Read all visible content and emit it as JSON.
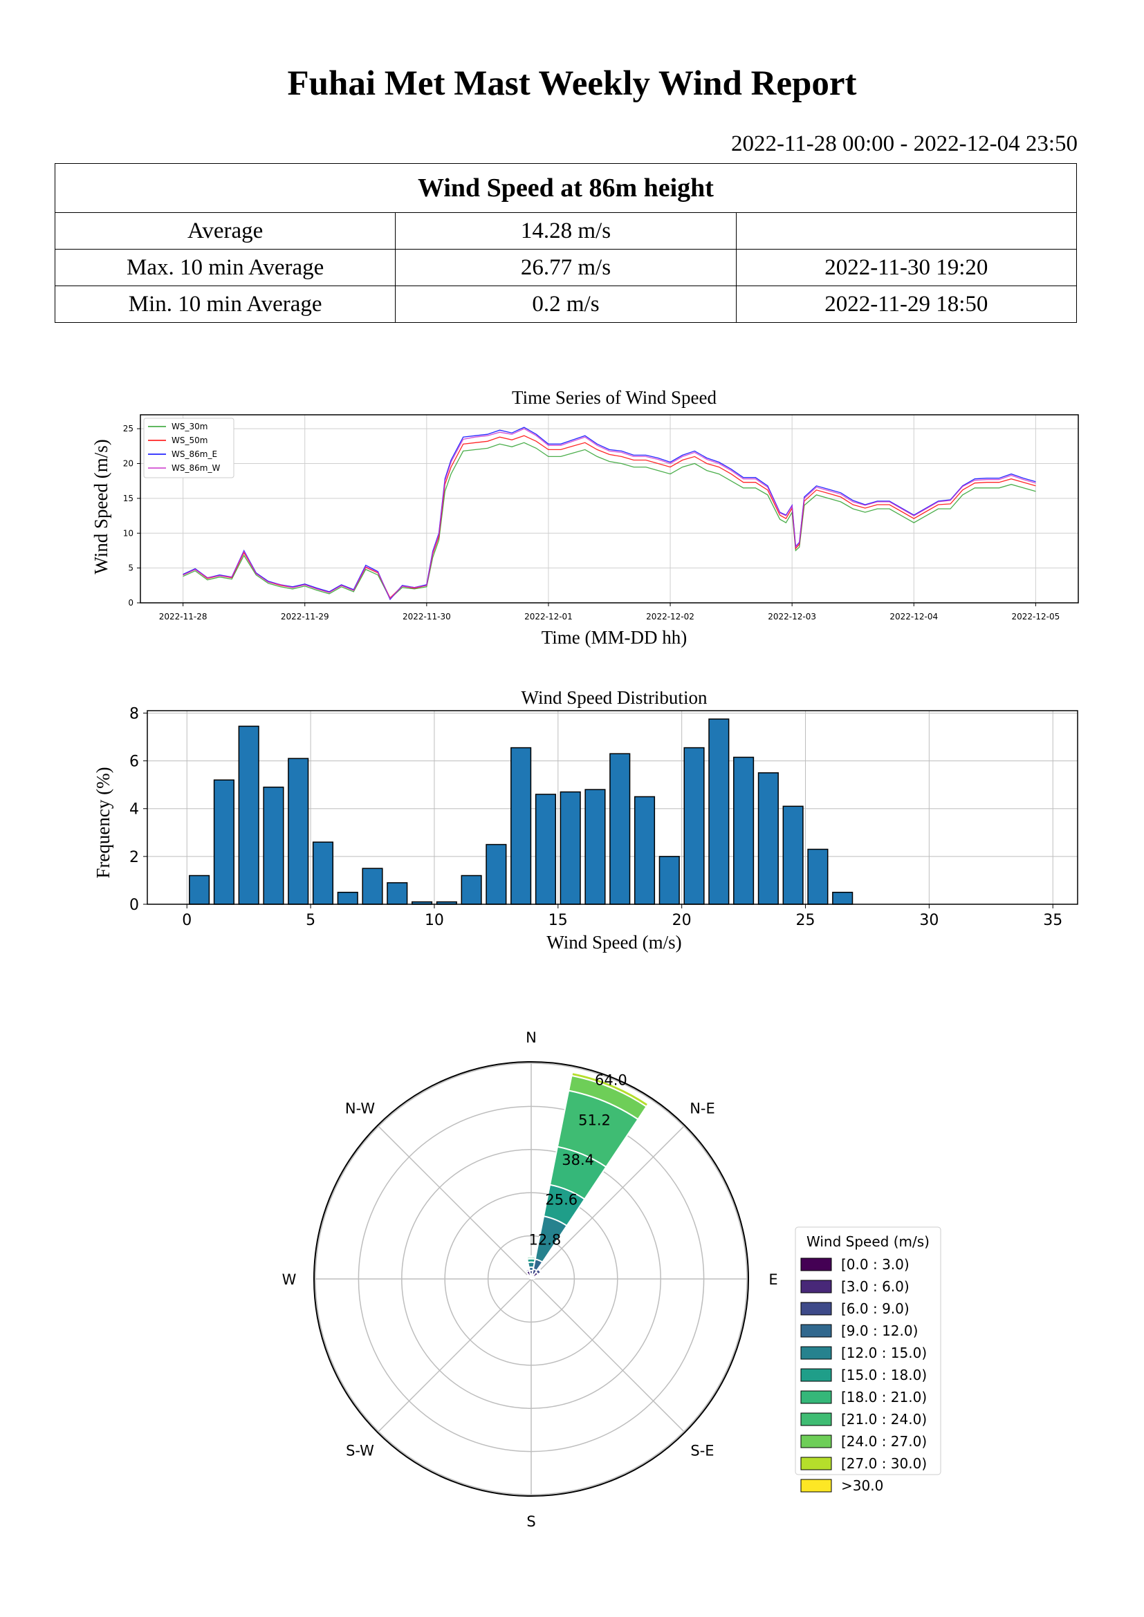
{
  "report": {
    "title": "Fuhai Met Mast Weekly Wind Report",
    "date_range": "2022-11-28 00:00 - 2022-12-04 23:50"
  },
  "summary": {
    "heading": "Wind Speed at 86m height",
    "rows": [
      {
        "label": "Average",
        "value": "14.28 m/s",
        "time": ""
      },
      {
        "label": "Max. 10 min Average",
        "value": "26.77 m/s",
        "time": "2022-11-30 19:20"
      },
      {
        "label": "Min. 10 min Average",
        "value": "0.2 m/s",
        "time": "2022-11-29 18:50"
      }
    ]
  },
  "chart_data": [
    {
      "type": "line",
      "title": "Time Series of Wind Speed",
      "xlabel": "Time (MM-DD hh)",
      "ylabel": "Wind Speed (m/s)",
      "xticklabels": [
        "2022-11-28",
        "2022-11-29",
        "2022-11-30",
        "2022-12-01",
        "2022-12-02",
        "2022-12-03",
        "2022-12-04",
        "2022-12-05"
      ],
      "yticks": [
        0,
        5,
        10,
        15,
        20,
        25
      ],
      "xlim_days": [
        -0.35,
        7.35
      ],
      "ylim": [
        0,
        27
      ],
      "grid": true,
      "legend_position": "top-left",
      "x_days": [
        0,
        0.1,
        0.2,
        0.3,
        0.4,
        0.5,
        0.6,
        0.7,
        0.8,
        0.9,
        1.0,
        1.1,
        1.2,
        1.3,
        1.4,
        1.5,
        1.6,
        1.7,
        1.8,
        1.9,
        2.0,
        2.05,
        2.1,
        2.15,
        2.2,
        2.3,
        2.4,
        2.5,
        2.6,
        2.7,
        2.8,
        2.9,
        3.0,
        3.1,
        3.2,
        3.3,
        3.4,
        3.5,
        3.6,
        3.7,
        3.8,
        3.9,
        4.0,
        4.1,
        4.2,
        4.3,
        4.4,
        4.5,
        4.6,
        4.7,
        4.8,
        4.9,
        4.95,
        5.0,
        5.03,
        5.06,
        5.1,
        5.2,
        5.3,
        5.4,
        5.5,
        5.6,
        5.7,
        5.8,
        5.9,
        6.0,
        6.1,
        6.2,
        6.3,
        6.4,
        6.5,
        6.6,
        6.7,
        6.8,
        6.9,
        7.0
      ],
      "series": [
        {
          "name": "WS_30m",
          "color": "#2ca02c",
          "values": [
            3.8,
            4.6,
            3.3,
            3.7,
            3.4,
            6.8,
            4.0,
            2.8,
            2.3,
            2.0,
            2.4,
            1.8,
            1.3,
            2.3,
            1.6,
            4.8,
            4.0,
            0.6,
            2.2,
            2.0,
            2.3,
            6.5,
            9.0,
            16.0,
            18.5,
            21.8,
            22.0,
            22.2,
            22.8,
            22.4,
            23.0,
            22.2,
            21.0,
            21.0,
            21.5,
            22.0,
            21.0,
            20.3,
            20.0,
            19.5,
            19.5,
            19.0,
            18.5,
            19.5,
            20.0,
            19.0,
            18.5,
            17.5,
            16.5,
            16.5,
            15.5,
            12.0,
            11.5,
            13.0,
            7.5,
            8.0,
            14.0,
            15.5,
            15.0,
            14.5,
            13.5,
            13.0,
            13.5,
            13.5,
            12.5,
            11.5,
            12.5,
            13.5,
            13.5,
            15.5,
            16.5,
            16.5,
            16.5,
            17.0,
            16.5,
            16.0
          ]
        },
        {
          "name": "WS_50m",
          "color": "#ff0000",
          "values": [
            4.0,
            4.8,
            3.5,
            3.9,
            3.6,
            7.2,
            4.2,
            3.0,
            2.5,
            2.2,
            2.6,
            2.0,
            1.5,
            2.5,
            1.8,
            5.1,
            4.3,
            0.7,
            2.4,
            2.1,
            2.5,
            7.0,
            9.5,
            17.0,
            19.5,
            22.8,
            23.0,
            23.2,
            23.8,
            23.4,
            24.0,
            23.2,
            22.0,
            22.0,
            22.5,
            23.0,
            22.0,
            21.3,
            21.0,
            20.5,
            20.5,
            20.0,
            19.5,
            20.5,
            21.0,
            20.0,
            19.5,
            18.5,
            17.3,
            17.3,
            16.2,
            12.6,
            12.1,
            13.6,
            7.8,
            8.4,
            14.6,
            16.2,
            15.7,
            15.2,
            14.1,
            13.6,
            14.1,
            14.1,
            13.1,
            12.1,
            13.1,
            14.1,
            14.2,
            16.2,
            17.2,
            17.3,
            17.3,
            17.8,
            17.3,
            16.8
          ]
        },
        {
          "name": "WS_86m_E",
          "color": "#0000ff",
          "values": [
            4.1,
            4.9,
            3.6,
            4.0,
            3.7,
            7.5,
            4.3,
            3.1,
            2.6,
            2.3,
            2.7,
            2.1,
            1.6,
            2.6,
            1.9,
            5.4,
            4.5,
            0.5,
            2.5,
            2.2,
            2.6,
            7.4,
            10.0,
            17.8,
            20.5,
            23.8,
            24.0,
            24.2,
            24.8,
            24.4,
            25.2,
            24.2,
            22.8,
            22.8,
            23.4,
            24.0,
            22.8,
            22.0,
            21.8,
            21.2,
            21.2,
            20.8,
            20.2,
            21.2,
            21.8,
            20.8,
            20.2,
            19.2,
            18.0,
            18.0,
            16.8,
            13.0,
            12.6,
            14.0,
            8.1,
            8.7,
            15.2,
            16.8,
            16.3,
            15.8,
            14.7,
            14.1,
            14.6,
            14.6,
            13.6,
            12.6,
            13.6,
            14.6,
            14.8,
            16.8,
            17.8,
            17.9,
            17.9,
            18.5,
            17.9,
            17.4
          ]
        },
        {
          "name": "WS_86m_W",
          "color": "#cc33cc",
          "values": [
            4.0,
            4.8,
            3.6,
            3.9,
            3.7,
            7.4,
            4.2,
            3.0,
            2.6,
            2.2,
            2.6,
            2.0,
            1.5,
            2.5,
            1.8,
            5.2,
            4.4,
            0.6,
            2.4,
            2.2,
            2.5,
            7.2,
            9.8,
            17.5,
            20.2,
            23.5,
            23.8,
            24.0,
            24.5,
            24.2,
            25.0,
            24.0,
            22.6,
            22.6,
            23.2,
            23.8,
            22.6,
            21.8,
            21.6,
            21.0,
            21.0,
            20.6,
            20.0,
            21.0,
            21.6,
            20.6,
            20.0,
            19.0,
            17.8,
            17.8,
            16.6,
            12.9,
            12.5,
            13.9,
            8.0,
            8.6,
            15.0,
            16.6,
            16.1,
            15.6,
            14.5,
            14.0,
            14.5,
            14.5,
            13.5,
            12.5,
            13.5,
            14.5,
            14.7,
            16.7,
            17.6,
            17.7,
            17.7,
            18.3,
            17.7,
            17.2
          ]
        }
      ]
    },
    {
      "type": "bar",
      "title": "Wind Speed Distribution",
      "xlabel": "Wind Speed (m/s)",
      "ylabel": "Frequency (%)",
      "bar_color": "#1f77b4",
      "xticks": [
        0,
        5,
        10,
        15,
        20,
        25,
        30,
        35
      ],
      "yticks": [
        0,
        2,
        4,
        6,
        8
      ],
      "xlim": [
        -1.6,
        36.0
      ],
      "ylim": [
        0,
        8.1
      ],
      "grid": true,
      "bin_centers": [
        0.5,
        1.5,
        2.5,
        3.5,
        4.5,
        5.5,
        6.5,
        7.5,
        8.5,
        9.5,
        10.5,
        11.5,
        12.5,
        13.5,
        14.5,
        15.5,
        16.5,
        17.5,
        18.5,
        19.5,
        20.5,
        21.5,
        22.5,
        23.5,
        24.5,
        25.5,
        26.5,
        27.5,
        28.5,
        29.5,
        30.5,
        31.5,
        32.5,
        33.5,
        34.5
      ],
      "values": [
        1.2,
        5.2,
        7.45,
        4.9,
        6.1,
        2.6,
        0.5,
        1.5,
        0.9,
        0.1,
        0.1,
        1.2,
        2.5,
        6.55,
        4.6,
        4.7,
        4.8,
        6.3,
        4.5,
        2.0,
        6.55,
        7.75,
        6.15,
        5.5,
        4.1,
        2.3,
        0.5,
        0,
        0,
        0,
        0,
        0,
        0,
        0,
        0
      ]
    },
    {
      "type": "wind-rose",
      "legend_title": "Wind Speed (m/s)",
      "legend_position": "right",
      "direction_labels": [
        "N",
        "N-E",
        "E",
        "S-E",
        "S",
        "S-W",
        "W",
        "N-W"
      ],
      "radial_ticks": [
        "12.8",
        "25.6",
        "38.4",
        "51.2",
        "64.0"
      ],
      "r_max": 64.0,
      "bins": [
        {
          "label": "[0.0 : 3.0)",
          "color": "#440154"
        },
        {
          "label": "[3.0 : 6.0)",
          "color": "#482878"
        },
        {
          "label": "[6.0 : 9.0)",
          "color": "#3e4a89"
        },
        {
          "label": "[9.0 : 12.0)",
          "color": "#31688e"
        },
        {
          "label": "[12.0 : 15.0)",
          "color": "#26828e"
        },
        {
          "label": "[15.0 : 18.0)",
          "color": "#1f9e89"
        },
        {
          "label": "[18.0 : 21.0)",
          "color": "#35b779"
        },
        {
          "label": "[21.0 : 24.0)",
          "color": "#3fbc73"
        },
        {
          "label": "[24.0 : 27.0)",
          "color": "#6ece58"
        },
        {
          "label": "[27.0 : 30.0)",
          "color": "#b5de2b"
        },
        {
          "label": ">30.0",
          "color": "#fde725"
        }
      ],
      "sectors": [
        {
          "direction_deg": 22.5,
          "cumulative": [
            0.5,
            1.5,
            3.0,
            6.0,
            19.0,
            28.5,
            40.0,
            57.0,
            61.5,
            62.5,
            62.5
          ]
        },
        {
          "direction_deg": 0,
          "cumulative": [
            0.5,
            1.5,
            2.5,
            3.5,
            5.0,
            6.0,
            6.5,
            6.8,
            6.8,
            6.8,
            6.8
          ]
        },
        {
          "direction_deg": 337.5,
          "cumulative": [
            1.0,
            2.5,
            3.0,
            3.2,
            3.2,
            3.2,
            3.2,
            3.2,
            3.2,
            3.2,
            3.2
          ]
        },
        {
          "direction_deg": 45,
          "cumulative": [
            1.0,
            2.5,
            3.5,
            3.8,
            3.8,
            3.8,
            3.8,
            3.8,
            3.8,
            3.8,
            3.8
          ]
        },
        {
          "direction_deg": 315,
          "cumulative": [
            0.6,
            1.2,
            1.5,
            1.5,
            1.5,
            1.5,
            1.5,
            1.5,
            1.5,
            1.5,
            1.5
          ]
        },
        {
          "direction_deg": 67.5,
          "cumulative": [
            0.6,
            1.0,
            1.0,
            1.0,
            1.0,
            1.0,
            1.0,
            1.0,
            1.0,
            1.0,
            1.0
          ]
        }
      ]
    }
  ]
}
